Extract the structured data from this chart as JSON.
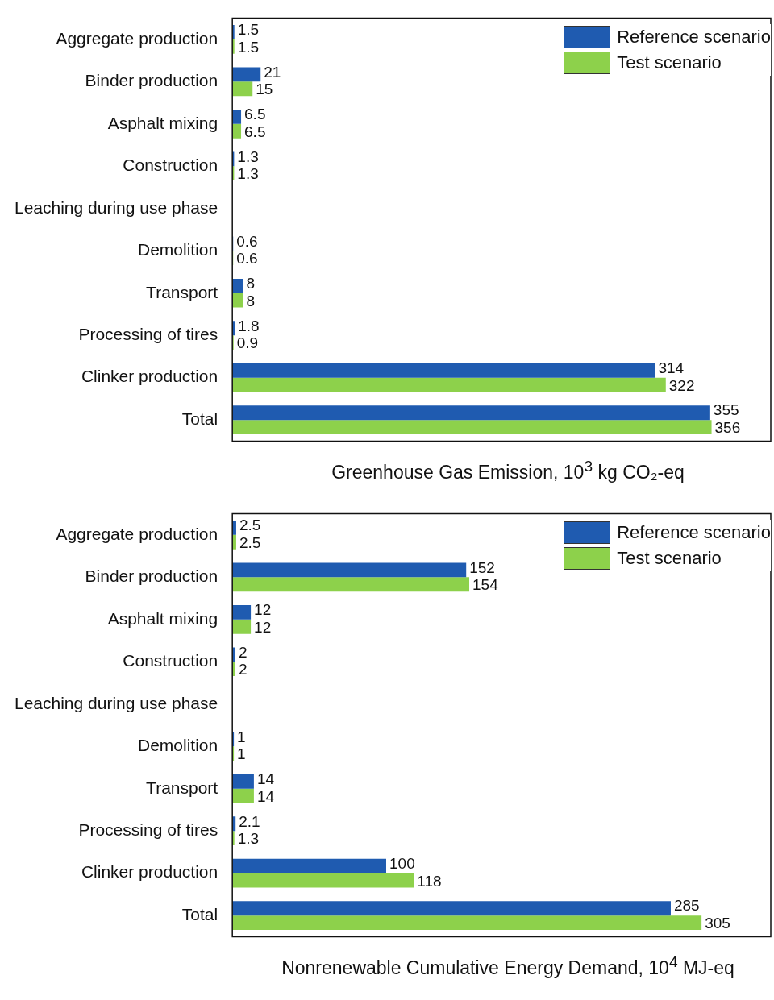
{
  "chart_data": [
    {
      "type": "bar",
      "orientation": "horizontal",
      "xlabel": "Greenhouse Gas Emission, 10$^{3}$ kg CO₂-eq",
      "categories": [
        "Aggregate production",
        "Binder production",
        "Asphalt mixing",
        "Construction",
        "Leaching during use phase",
        "Demolition",
        "Transport",
        "Processing of tires",
        "Clinker production",
        "Total"
      ],
      "series": [
        {
          "name": "Reference scenario",
          "color": "#1f5bb0",
          "values": [
            1.5,
            21,
            6.5,
            1.3,
            null,
            0.6,
            8,
            1.8,
            314,
            355
          ]
        },
        {
          "name": "Test scenario",
          "color": "#8dd14b",
          "values": [
            1.5,
            15,
            6.5,
            1.3,
            null,
            0.6,
            8,
            0.9,
            322,
            356
          ]
        }
      ],
      "data_labels": true,
      "legend": "top right",
      "tick_labels": "y"
    },
    {
      "type": "bar",
      "orientation": "horizontal",
      "xlabel": "Nonrenewable Cumulative Energy Demand, 10$^{4}$ MJ-eq",
      "categories": [
        "Aggregate production",
        "Binder production",
        "Asphalt mixing",
        "Construction",
        "Leaching during use phase",
        "Demolition",
        "Transport",
        "Processing of tires",
        "Clinker production",
        "Total"
      ],
      "series": [
        {
          "name": "Reference scenario",
          "color": "#1f5bb0",
          "values": [
            2.5,
            152,
            12,
            2,
            null,
            1,
            14,
            2.1,
            100,
            285
          ]
        },
        {
          "name": "Test scenario",
          "color": "#8dd14b",
          "values": [
            2.5,
            154,
            12,
            2,
            null,
            1,
            14,
            1.3,
            118,
            305
          ]
        }
      ],
      "data_labels": true,
      "legend": "top right",
      "tick_labels": "y"
    }
  ]
}
